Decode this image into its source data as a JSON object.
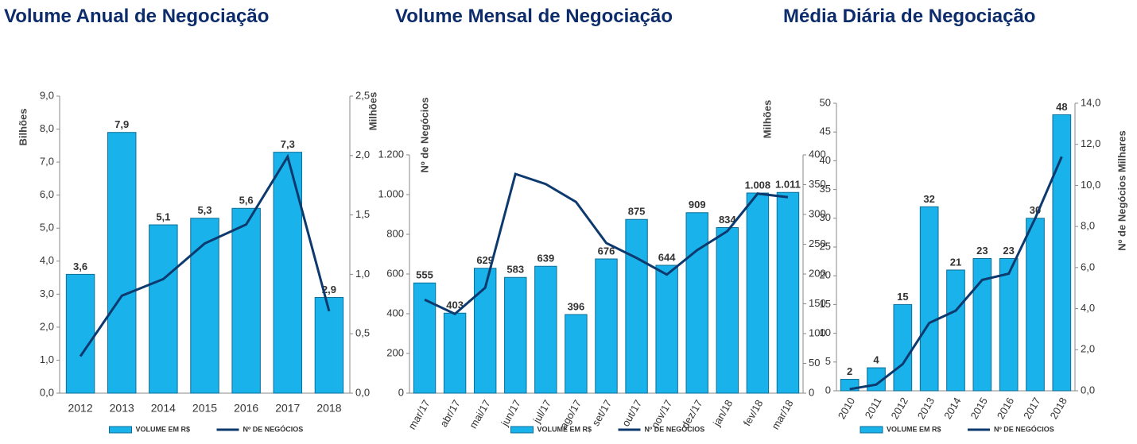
{
  "chart_data": [
    {
      "type": "bar",
      "title": "Volume Anual de Negociação",
      "ylabel": "Bilhões",
      "y2label": "Milhões",
      "categories": [
        "2012",
        "2013",
        "2014",
        "2015",
        "2016",
        "2017",
        "2018"
      ],
      "series": [
        {
          "name": "VOLUME EM R$",
          "color": "#19b2ea",
          "values": [
            3.6,
            7.9,
            5.1,
            5.3,
            5.6,
            7.3,
            2.9
          ],
          "value_labels": [
            "3,6",
            "7,9",
            "5,1",
            "5,3",
            "5,6",
            "7,3",
            "2,9"
          ]
        },
        {
          "name": "Nº DE NEGÓCIOS",
          "color": "#0d3a6e",
          "axis": "y2",
          "values": [
            0.31,
            0.82,
            0.96,
            1.26,
            1.42,
            1.99,
            0.69
          ]
        }
      ],
      "ylim": [
        0,
        9
      ],
      "yticks": [
        {
          "value": 0,
          "label": "0,0"
        },
        {
          "value": 1,
          "label": "1,0"
        },
        {
          "value": 2,
          "label": "2,0"
        },
        {
          "value": 3,
          "label": "3,0"
        },
        {
          "value": 4,
          "label": "4,0"
        },
        {
          "value": 5,
          "label": "5,0"
        },
        {
          "value": 6,
          "label": "6,0"
        },
        {
          "value": 7,
          "label": "7,0"
        },
        {
          "value": 8,
          "label": "8,0"
        },
        {
          "value": 9,
          "label": "9,0"
        }
      ],
      "y2lim": [
        0,
        2.5
      ],
      "y2ticks": [
        {
          "value": 0,
          "label": "0,0"
        },
        {
          "value": 0.5,
          "label": "0,5"
        },
        {
          "value": 1,
          "label": "1,0"
        },
        {
          "value": 1.5,
          "label": "1,5"
        },
        {
          "value": 2,
          "label": "2,0"
        },
        {
          "value": 2.5,
          "label": "2,5"
        }
      ]
    },
    {
      "type": "bar",
      "title": "Volume Mensal de Negociação",
      "ylabel": "Nº de Negócios",
      "y2label": "Milhões",
      "categories": [
        "mar/17",
        "abr/17",
        "mai/17",
        "jun/17",
        "jul/17",
        "ago/17",
        "set/17",
        "out/17",
        "nov/17",
        "dez/17",
        "jan/18",
        "fev/18",
        "mar/18"
      ],
      "series": [
        {
          "name": "VOLUME EM R$",
          "color": "#19b2ea",
          "values": [
            555,
            403,
            629,
            583,
            639,
            396,
            676,
            875,
            644,
            909,
            834,
            1008,
            1011
          ],
          "value_labels": [
            "555",
            "403",
            "629",
            "583",
            "639",
            "396",
            "676",
            "875",
            "644",
            "909",
            "834",
            "1.008",
            "1.011"
          ]
        },
        {
          "name": "Nº DE NEGÓCIOS",
          "color": "#0d3a6e",
          "axis": "y2",
          "values": [
            157,
            133,
            177,
            368,
            351,
            321,
            252,
            227,
            199,
            240,
            272,
            335,
            329
          ]
        }
      ],
      "ylim": [
        0,
        1200
      ],
      "yticks": [
        0,
        200,
        400,
        600,
        800,
        {
          "value": 1000,
          "label": "1.000"
        },
        {
          "value": 1200,
          "label": "1.200"
        }
      ],
      "y2lim": [
        0,
        400
      ],
      "y2ticks": [
        0,
        50,
        100,
        150,
        200,
        250,
        300,
        350,
        400
      ]
    },
    {
      "type": "bar",
      "title": "Média Diária de Negociação",
      "y2label": "Nº de Negócios Milhares",
      "categories": [
        "2010",
        "2011",
        "2012",
        "2013",
        "2014",
        "2015",
        "2016",
        "2017",
        "2018"
      ],
      "series": [
        {
          "name": "VOLUME EM R$",
          "color": "#19b2ea",
          "values": [
            2,
            4,
            15,
            32,
            21,
            23,
            23,
            30,
            48
          ]
        },
        {
          "name": "Nº DE NEGÓCIOS",
          "color": "#0d3a6e",
          "axis": "y2",
          "values": [
            0.08,
            0.3,
            1.3,
            3.3,
            3.9,
            5.4,
            5.7,
            8.4,
            11.4
          ]
        }
      ],
      "ylim": [
        0,
        50
      ],
      "yticks": [
        0,
        5,
        10,
        15,
        20,
        25,
        30,
        35,
        40,
        45,
        50
      ],
      "y2lim": [
        0,
        14
      ],
      "y2ticks": [
        {
          "value": 0,
          "label": "0,0"
        },
        {
          "value": 2,
          "label": "2,0"
        },
        {
          "value": 4,
          "label": "4,0"
        },
        {
          "value": 6,
          "label": "6,0"
        },
        {
          "value": 8,
          "label": "8,0"
        },
        {
          "value": 10,
          "label": "10,0"
        },
        {
          "value": 12,
          "label": "12,0"
        },
        {
          "value": 14,
          "label": "14,0"
        }
      ]
    }
  ]
}
